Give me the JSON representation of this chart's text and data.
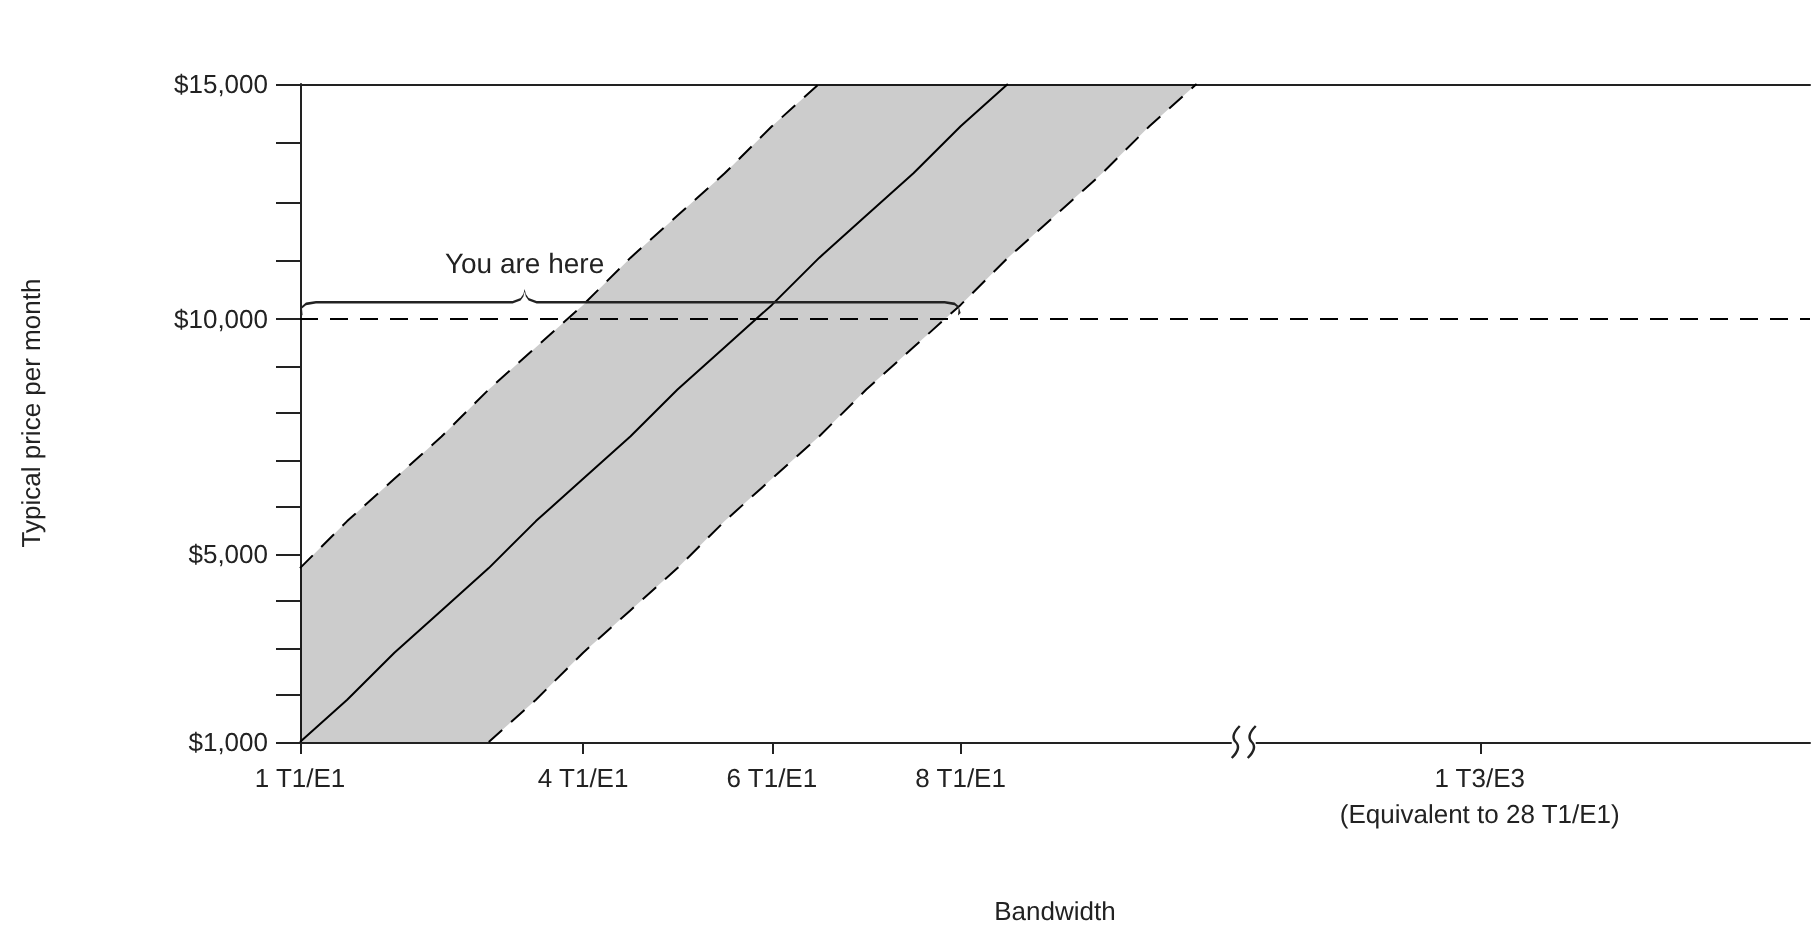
{
  "chart_data": {
    "type": "line",
    "xlabel": "Bandwidth",
    "ylabel": "Typical price per month",
    "marker": "none",
    "grid": false,
    "categories": [
      "1 T1/E1",
      null,
      null,
      null,
      null,
      null,
      "4 T1/E1",
      null,
      null,
      null,
      "6 T1/E1",
      null,
      null,
      null,
      "8 T1/E1",
      null,
      null,
      null,
      null,
      null,
      null,
      null,
      null,
      null,
      null,
      "1 T3/E3\n(Equivalent to 28 T1/E1)",
      null,
      null,
      null,
      null,
      null,
      null,
      null
    ],
    "ylim": [
      1000,
      15000
    ],
    "yticks": [
      {
        "value": 1000,
        "label": "$1,000"
      },
      {
        "value": 2000,
        "label": null
      },
      {
        "value": 3000,
        "label": null
      },
      {
        "value": 4000,
        "label": null
      },
      {
        "value": 5000,
        "label": "$5,000"
      },
      {
        "value": 6000,
        "label": null
      },
      {
        "value": 7000,
        "label": null
      },
      {
        "value": 8000,
        "label": null
      },
      {
        "value": 9000,
        "label": null
      },
      {
        "value": 10000,
        "label": "$10,000"
      },
      {
        "value": 11250,
        "label": null
      },
      {
        "value": 12500,
        "label": null
      },
      {
        "value": 13750,
        "label": null
      },
      {
        "value": 15000,
        "label": "$15,000"
      }
    ],
    "series": [
      {
        "color": "#000000",
        "line_style": "solid",
        "values": [
          1000,
          1900,
          2900,
          3800,
          4700,
          5700,
          6600,
          7500,
          8500,
          9400,
          10300,
          11300,
          12200,
          13100,
          14100,
          15000,
          null,
          null,
          null,
          null,
          null,
          null,
          null,
          null,
          null,
          null,
          null,
          null,
          null,
          null,
          null,
          null,
          null
        ],
        "lower": [
          1000,
          1000,
          1000,
          1000,
          1000,
          1900,
          2900,
          3800,
          4700,
          5700,
          6600,
          7500,
          8500,
          9400,
          10300,
          11300,
          12200,
          13100,
          14100,
          15000,
          null,
          null,
          null,
          null,
          null,
          null,
          null,
          null,
          null,
          null,
          null,
          null,
          null
        ],
        "upper": [
          4700,
          5700,
          6600,
          7500,
          8500,
          9400,
          10300,
          11300,
          12200,
          13100,
          14100,
          15000,
          15000,
          15000,
          15000,
          15000,
          15000,
          15000,
          15000,
          15000,
          null,
          null,
          null,
          null,
          null,
          null,
          null,
          null,
          null,
          null,
          null,
          null,
          null
        ]
      },
      {
        "color": "#000000",
        "line_style": "dashed",
        "values": [
          4700,
          5700,
          6600,
          7500,
          8500,
          9400,
          10300,
          11300,
          12200,
          13100,
          14100,
          15000,
          null,
          null,
          null,
          null,
          null,
          null,
          null,
          null,
          null,
          null,
          null,
          null,
          null,
          null,
          null,
          null,
          null,
          null,
          null,
          null,
          null
        ]
      },
      {
        "color": "#000000",
        "line_style": "dashed",
        "values": [
          null,
          null,
          null,
          null,
          1000,
          1900,
          2900,
          3800,
          4700,
          5700,
          6600,
          7500,
          8500,
          9400,
          10300,
          11300,
          12200,
          13100,
          14100,
          15000,
          null,
          null,
          null,
          null,
          null,
          null,
          null,
          null,
          null,
          null,
          null,
          null,
          null
        ]
      }
    ],
    "ref_lines": [
      {
        "axis": "y",
        "value": 10000,
        "label": null,
        "color": "#000000",
        "line_style": "dashed"
      }
    ],
    "annotations": [
      "You are here"
    ]
  }
}
